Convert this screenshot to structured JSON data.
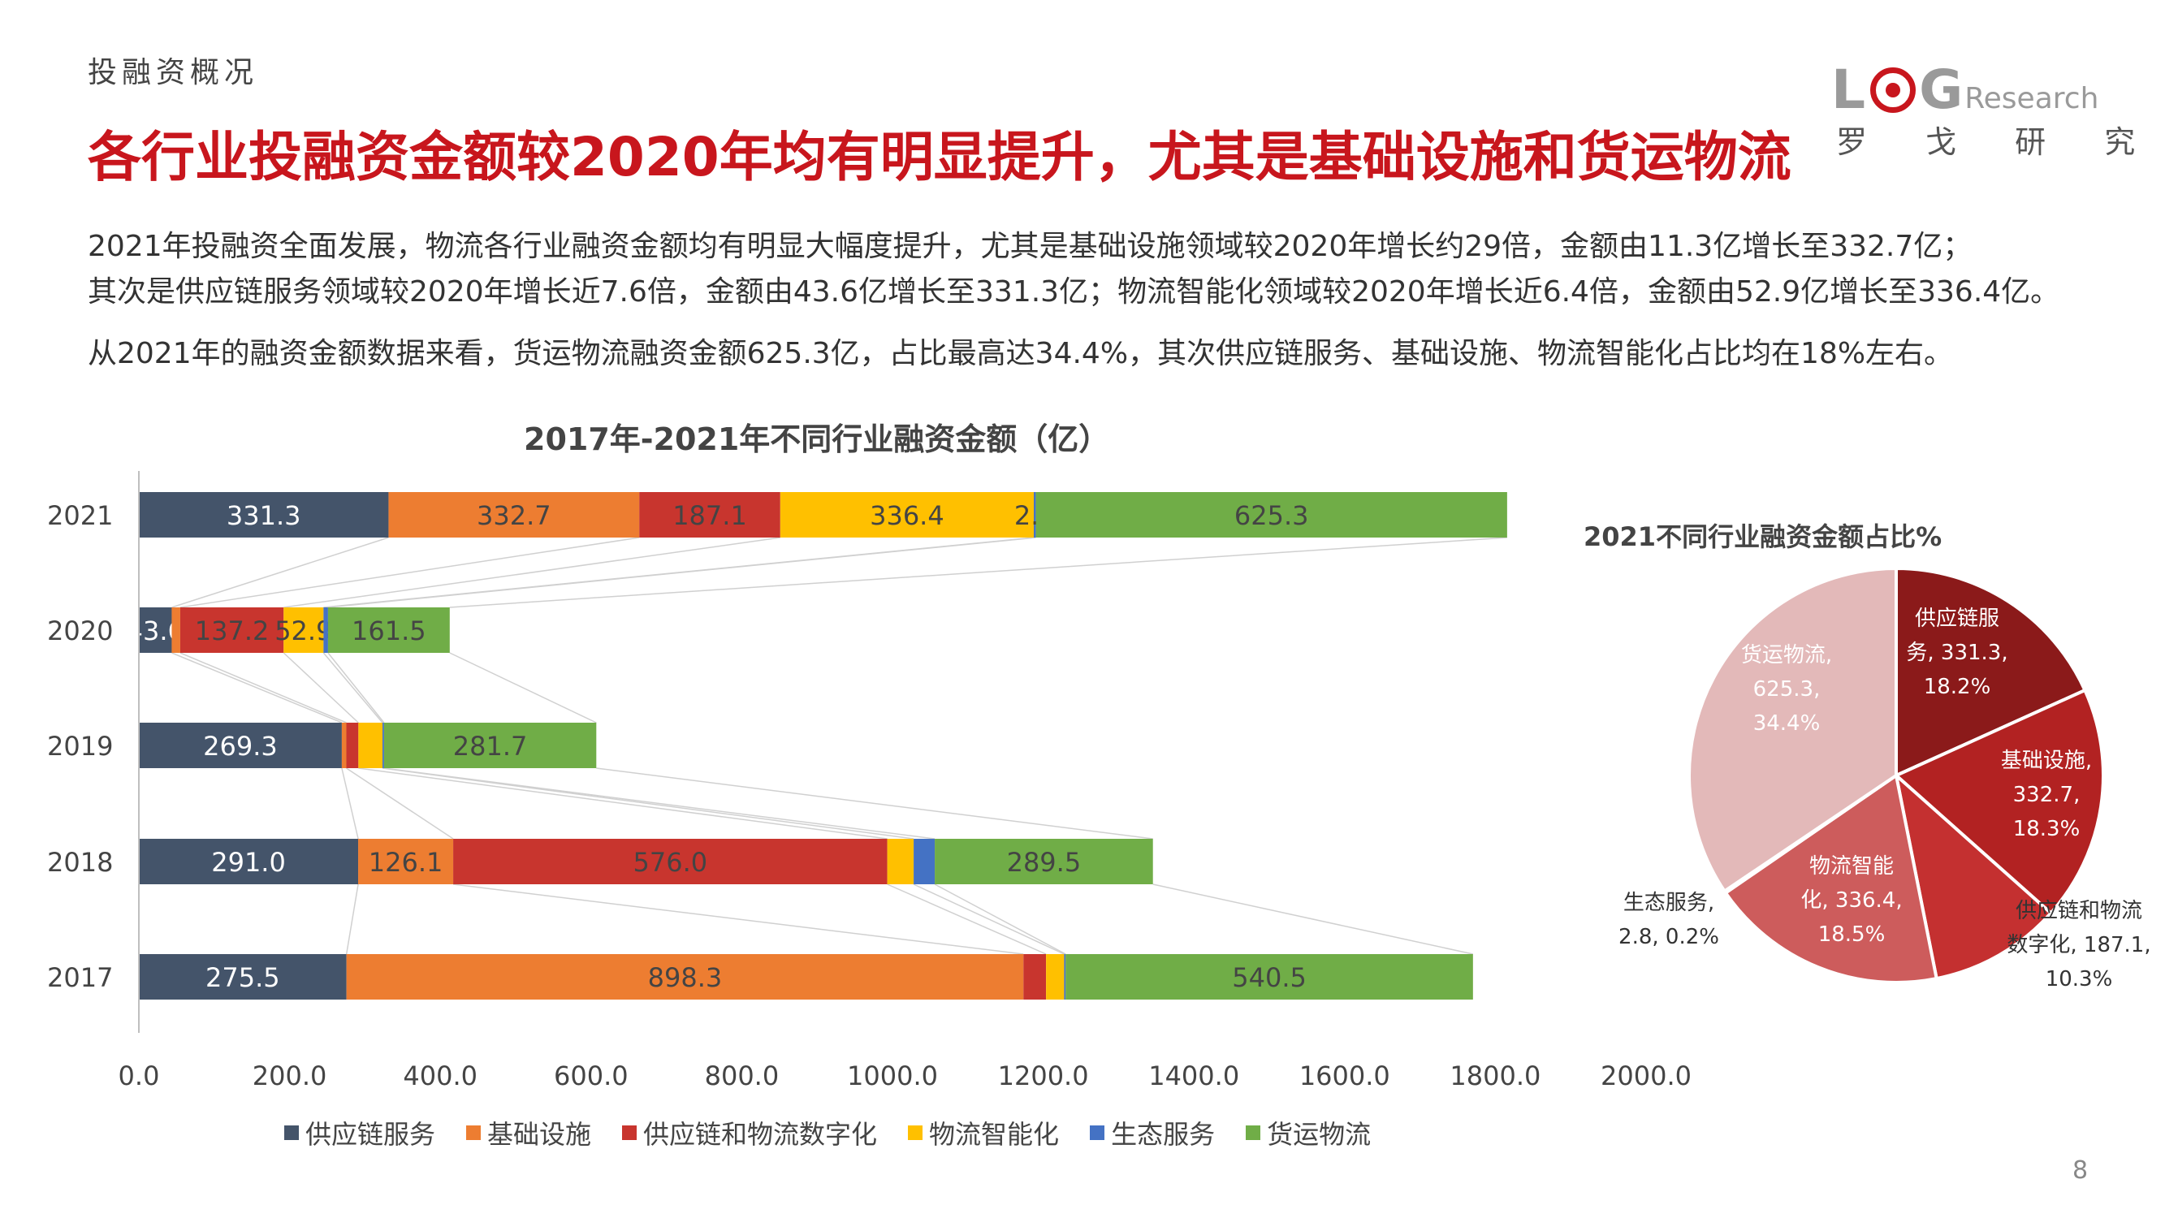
{
  "section_label": "投融资概况",
  "headline": "各行业投融资金额较2020年均有明显提升，尤其是基础设施和货运物流",
  "logo": {
    "word_left": "L",
    "word_right": "G",
    "word_suffix": "Research",
    "subtitle": "罗 戈 研 究",
    "color": "#c8161d"
  },
  "paragraphs": [
    "2021年投融资全面发展，物流各行业融资金额均有明显大幅度提升，尤其是基础设施领域较2020年增长约29倍，金额由11.3亿增长至332.7亿；",
    "其次是供应链服务领域较2020年增长近7.6倍，金额由43.6亿增长至331.3亿；物流智能化领域较2020年增长近6.4倍，金额由52.9亿增长至336.4亿。",
    "从2021年的融资金额数据来看，货运物流融资金额625.3亿，占比最高达34.4%，其次供应链服务、基础设施、物流智能化占比均在18%左右。"
  ],
  "page_number": "8",
  "chart_data": [
    {
      "type": "bar",
      "orientation": "horizontal",
      "stacked": true,
      "title": "2017年-2021年不同行业融资金额（亿）",
      "categories": [
        "2021",
        "2020",
        "2019",
        "2018",
        "2017"
      ],
      "xlim": [
        0,
        2000
      ],
      "xticks": [
        "0.0",
        "200.0",
        "400.0",
        "600.0",
        "800.0",
        "1000.0",
        "1200.0",
        "1400.0",
        "1600.0",
        "1800.0",
        "2000.0"
      ],
      "grid": false,
      "legend_position": "bottom",
      "series": [
        {
          "name": "供应链服务",
          "color": "#44546a",
          "label_color": "#ffffff",
          "values": [
            331.3,
            43.6,
            269.3,
            291.0,
            275.5
          ],
          "labels": [
            "331.3",
            "43.6",
            "269.3",
            "291.0",
            "275.5"
          ]
        },
        {
          "name": "基础设施",
          "color": "#ed7d31",
          "label_color": "#444444",
          "values": [
            332.7,
            11.3,
            6.0,
            126.1,
            898.3
          ],
          "labels": [
            "332.7",
            "",
            "",
            "126.1",
            "898.3"
          ]
        },
        {
          "name": "供应链和物流数字化",
          "color": "#c8352e",
          "label_color": "#444444",
          "values": [
            187.1,
            137.2,
            16.0,
            576.0,
            30.0
          ],
          "labels": [
            "187.1",
            "137.2",
            "",
            "576.0",
            ""
          ]
        },
        {
          "name": "物流智能化",
          "color": "#ffc000",
          "label_color": "#444444",
          "values": [
            336.4,
            52.9,
            32.0,
            35.0,
            24.0
          ],
          "labels": [
            "336.4",
            "52.9",
            "",
            "",
            ""
          ]
        },
        {
          "name": "生态服务",
          "color": "#4472c4",
          "label_color": "#444444",
          "values": [
            2.8,
            6.0,
            2.0,
            28.0,
            2.0
          ],
          "labels": [
            "2.8",
            "",
            "",
            "",
            ""
          ]
        },
        {
          "name": "货运物流",
          "color": "#70ad47",
          "label_color": "#444444",
          "values": [
            625.3,
            161.5,
            281.7,
            289.5,
            540.5
          ],
          "labels": [
            "625.3",
            "161.5",
            "281.7",
            "289.5",
            "540.5"
          ]
        }
      ]
    },
    {
      "type": "pie",
      "title": "2021不同行业融资金额占比%",
      "slices": [
        {
          "name": "供应链服务",
          "value": 331.3,
          "percent": 18.2,
          "color": "#8b1a1a",
          "label_lines": [
            "供应链服",
            "务, 331.3,",
            "18.2%"
          ],
          "label_color": "#ffffff"
        },
        {
          "name": "基础设施",
          "value": 332.7,
          "percent": 18.3,
          "color": "#b22222",
          "label_lines": [
            "基础设施,",
            "332.7,",
            "18.3%"
          ],
          "label_color": "#ffffff"
        },
        {
          "name": "供应链和物流数字化",
          "value": 187.1,
          "percent": 10.3,
          "color": "#c43030",
          "label_lines": [
            "供应链和物流",
            "数字化, 187.1,",
            "10.3%"
          ],
          "label_color": "#333333"
        },
        {
          "name": "物流智能化",
          "value": 336.4,
          "percent": 18.5,
          "color": "#cd5c5c",
          "label_lines": [
            "物流智能",
            "化, 336.4,",
            "18.5%"
          ],
          "label_color": "#ffffff"
        },
        {
          "name": "生态服务",
          "value": 2.8,
          "percent": 0.2,
          "color": "#e08080",
          "label_lines": [
            "生态服务,",
            "2.8, 0.2%"
          ],
          "label_color": "#333333"
        },
        {
          "name": "货运物流",
          "value": 625.3,
          "percent": 34.4,
          "color": "#e3b9b9",
          "label_lines": [
            "货运物流,",
            "625.3,",
            "34.4%"
          ],
          "label_color": "#ffffff"
        }
      ]
    }
  ]
}
